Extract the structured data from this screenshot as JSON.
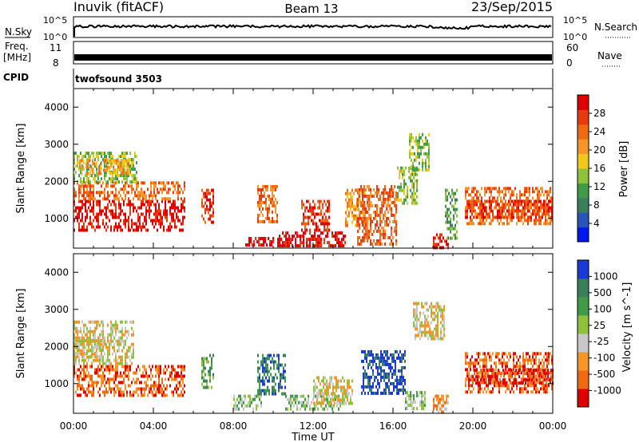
{
  "header": {
    "title_left": "Inuvik (fitACF)",
    "title_center": "Beam 13",
    "title_right": "23/Sep/2015"
  },
  "top_panels": {
    "nsky": {
      "label": "N.Sky",
      "right_label": "N.Search",
      "ticks": [
        "10^5",
        "10^0"
      ]
    },
    "freq": {
      "label_line1": "Freq.",
      "label_line2": "[MHz]",
      "right_label": "Nave",
      "left_ticks": [
        "11",
        "8"
      ],
      "right_ticks": [
        "60",
        "0"
      ]
    },
    "cpid": {
      "label": "CPID",
      "value": "twofsound 3503"
    }
  },
  "chart_data": [
    {
      "type": "heatmap",
      "name": "power",
      "ylabel": "Slant Range [km]",
      "y_ticks": [
        "4000",
        "3000",
        "2000",
        "1000"
      ],
      "ylim": [
        200,
        4500
      ],
      "xlim": [
        0,
        24
      ],
      "colorbar": {
        "label": "Power [dB]",
        "tick_labels": [
          "28",
          "24",
          "20",
          "16",
          "12",
          "8",
          "4"
        ],
        "colors": [
          "#0018f0",
          "#2a55b8",
          "#3a7f5c",
          "#3e9c48",
          "#8fc13a",
          "#f0c81c",
          "#f6962a",
          "#f06a14",
          "#e83a10",
          "#e00000"
        ]
      },
      "regions": [
        [
          0.0,
          5.6,
          650,
          1500,
          9
        ],
        [
          0.0,
          5.6,
          1500,
          2000,
          7
        ],
        [
          0.0,
          3.2,
          2000,
          2800,
          4
        ],
        [
          0.2,
          2.8,
          2200,
          2600,
          6
        ],
        [
          6.4,
          7.0,
          900,
          1800,
          8
        ],
        [
          8.6,
          10.0,
          250,
          500,
          9
        ],
        [
          9.2,
          10.2,
          900,
          1900,
          7
        ],
        [
          10.2,
          13.6,
          250,
          650,
          9
        ],
        [
          11.4,
          12.8,
          650,
          1500,
          8
        ],
        [
          13.6,
          14.6,
          800,
          1800,
          6
        ],
        [
          14.2,
          16.2,
          300,
          1900,
          7
        ],
        [
          16.2,
          17.2,
          1400,
          2400,
          4
        ],
        [
          16.8,
          17.8,
          2300,
          3300,
          4
        ],
        [
          18.0,
          18.8,
          250,
          600,
          9
        ],
        [
          18.6,
          19.2,
          500,
          1800,
          3
        ],
        [
          19.6,
          24.0,
          900,
          1850,
          7
        ],
        [
          19.6,
          24.0,
          1000,
          1500,
          8
        ]
      ]
    },
    {
      "type": "heatmap",
      "name": "velocity",
      "ylabel": "Slant Range [km]",
      "y_ticks": [
        "4000",
        "3000",
        "2000",
        "1000"
      ],
      "ylim": [
        200,
        4500
      ],
      "xlim": [
        0,
        24
      ],
      "xlabel": "Time UT",
      "x_ticks": [
        "00:00",
        "04:00",
        "08:00",
        "12:00",
        "16:00",
        "20:00",
        "00:00"
      ],
      "colorbar": {
        "label": "Velocity [m s^-1]",
        "tick_labels": [
          "1000",
          "500",
          "100",
          "25",
          "-25",
          "-100",
          "-500",
          "-1000"
        ],
        "colors": [
          "#e00000",
          "#f06a14",
          "#f6962a",
          "#c8c8c8",
          "#8fc13a",
          "#3e9c48",
          "#3a7f5c",
          "#1a3ad8"
        ]
      },
      "regions": [
        [
          0.0,
          5.6,
          700,
          1500,
          1
        ],
        [
          0.0,
          3.0,
          1500,
          2700,
          3
        ],
        [
          0.0,
          1.5,
          1700,
          2200,
          3
        ],
        [
          6.4,
          7.0,
          900,
          1800,
          5
        ],
        [
          8.0,
          9.4,
          300,
          700,
          4
        ],
        [
          9.2,
          10.6,
          700,
          1800,
          6
        ],
        [
          10.6,
          13.4,
          300,
          700,
          4
        ],
        [
          12.0,
          14.0,
          500,
          1200,
          3
        ],
        [
          14.4,
          16.6,
          700,
          1900,
          7
        ],
        [
          16.6,
          17.6,
          300,
          800,
          4
        ],
        [
          17.0,
          18.6,
          2200,
          3200,
          3
        ],
        [
          18.0,
          18.8,
          250,
          700,
          2
        ],
        [
          19.6,
          24.0,
          800,
          1850,
          1
        ],
        [
          19.8,
          24.0,
          1000,
          1400,
          0
        ]
      ]
    }
  ],
  "colors": {
    "frame": "#000000",
    "background": "#ffffff"
  }
}
